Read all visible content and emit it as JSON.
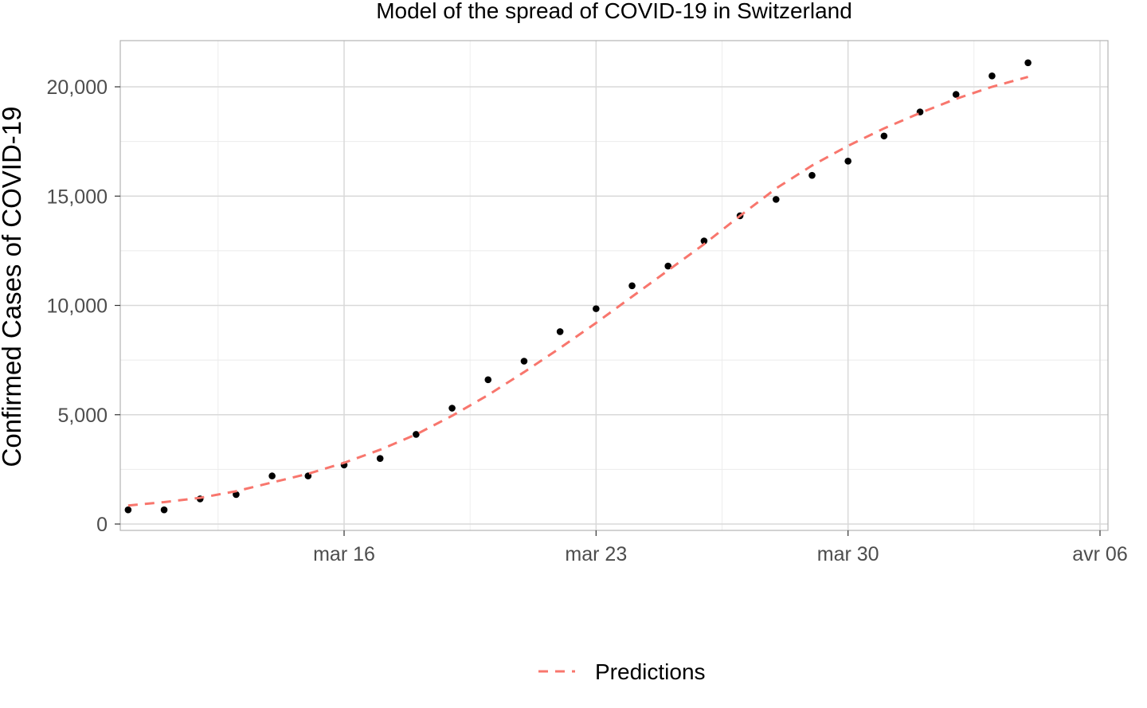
{
  "chart_data": {
    "type": "scatter",
    "title": "Model of the spread of COVID-19 in Switzerland",
    "xlabel": "",
    "ylabel": "Confirmed Cases of COVID-19",
    "xlim": [
      "2020-03-09",
      "2020-04-06"
    ],
    "ylim": [
      -200,
      22000
    ],
    "x_ticks": [
      {
        "date": "2020-03-16",
        "label": "mar 16"
      },
      {
        "date": "2020-03-23",
        "label": "mar 23"
      },
      {
        "date": "2020-03-30",
        "label": "mar 30"
      },
      {
        "date": "2020-04-06",
        "label": "avr 06"
      }
    ],
    "y_ticks": [
      {
        "value": 0,
        "label": "0"
      },
      {
        "value": 5000,
        "label": "5,000"
      },
      {
        "value": 10000,
        "label": "10,000"
      },
      {
        "value": 15000,
        "label": "15,000"
      },
      {
        "value": 20000,
        "label": "20,000"
      }
    ],
    "grid": true,
    "legend_position": "bottom",
    "series": [
      {
        "kind": "points",
        "color": "#000000",
        "points": [
          {
            "x": "2020-03-10",
            "y": 650
          },
          {
            "x": "2020-03-11",
            "y": 650
          },
          {
            "x": "2020-03-12",
            "y": 1150
          },
          {
            "x": "2020-03-13",
            "y": 1350
          },
          {
            "x": "2020-03-14",
            "y": 2200
          },
          {
            "x": "2020-03-15",
            "y": 2200
          },
          {
            "x": "2020-03-16",
            "y": 2700
          },
          {
            "x": "2020-03-17",
            "y": 3000
          },
          {
            "x": "2020-03-18",
            "y": 4100
          },
          {
            "x": "2020-03-19",
            "y": 5300
          },
          {
            "x": "2020-03-20",
            "y": 6600
          },
          {
            "x": "2020-03-21",
            "y": 7450
          },
          {
            "x": "2020-03-22",
            "y": 8800
          },
          {
            "x": "2020-03-23",
            "y": 9850
          },
          {
            "x": "2020-03-24",
            "y": 10900
          },
          {
            "x": "2020-03-25",
            "y": 11800
          },
          {
            "x": "2020-03-26",
            "y": 12950
          },
          {
            "x": "2020-03-27",
            "y": 14100
          },
          {
            "x": "2020-03-28",
            "y": 14850
          },
          {
            "x": "2020-03-29",
            "y": 15950
          },
          {
            "x": "2020-03-30",
            "y": 16600
          },
          {
            "x": "2020-03-31",
            "y": 17750
          },
          {
            "x": "2020-04-01",
            "y": 18850
          },
          {
            "x": "2020-04-02",
            "y": 19650
          },
          {
            "x": "2020-04-03",
            "y": 20500
          },
          {
            "x": "2020-04-04",
            "y": 21100
          }
        ]
      },
      {
        "kind": "line",
        "name": "Predictions",
        "color": "#f8766d",
        "dashed": true,
        "points": [
          {
            "x": "2020-03-10",
            "y": 850
          },
          {
            "x": "2020-03-11",
            "y": 1000
          },
          {
            "x": "2020-03-12",
            "y": 1200
          },
          {
            "x": "2020-03-13",
            "y": 1500
          },
          {
            "x": "2020-03-14",
            "y": 1900
          },
          {
            "x": "2020-03-15",
            "y": 2300
          },
          {
            "x": "2020-03-16",
            "y": 2800
          },
          {
            "x": "2020-03-17",
            "y": 3400
          },
          {
            "x": "2020-03-18",
            "y": 4100
          },
          {
            "x": "2020-03-19",
            "y": 4950
          },
          {
            "x": "2020-03-20",
            "y": 5900
          },
          {
            "x": "2020-03-21",
            "y": 6950
          },
          {
            "x": "2020-03-22",
            "y": 8050
          },
          {
            "x": "2020-03-23",
            "y": 9200
          },
          {
            "x": "2020-03-24",
            "y": 10400
          },
          {
            "x": "2020-03-25",
            "y": 11600
          },
          {
            "x": "2020-03-26",
            "y": 12800
          },
          {
            "x": "2020-03-27",
            "y": 14100
          },
          {
            "x": "2020-03-28",
            "y": 15350
          },
          {
            "x": "2020-03-29",
            "y": 16400
          },
          {
            "x": "2020-03-30",
            "y": 17300
          },
          {
            "x": "2020-03-31",
            "y": 18100
          },
          {
            "x": "2020-04-01",
            "y": 18800
          },
          {
            "x": "2020-04-02",
            "y": 19450
          },
          {
            "x": "2020-04-03",
            "y": 20000
          },
          {
            "x": "2020-04-04",
            "y": 20450
          }
        ]
      }
    ],
    "legend": {
      "entries": [
        {
          "label": "Predictions",
          "color": "#f8766d",
          "style": "dashed"
        }
      ]
    }
  }
}
